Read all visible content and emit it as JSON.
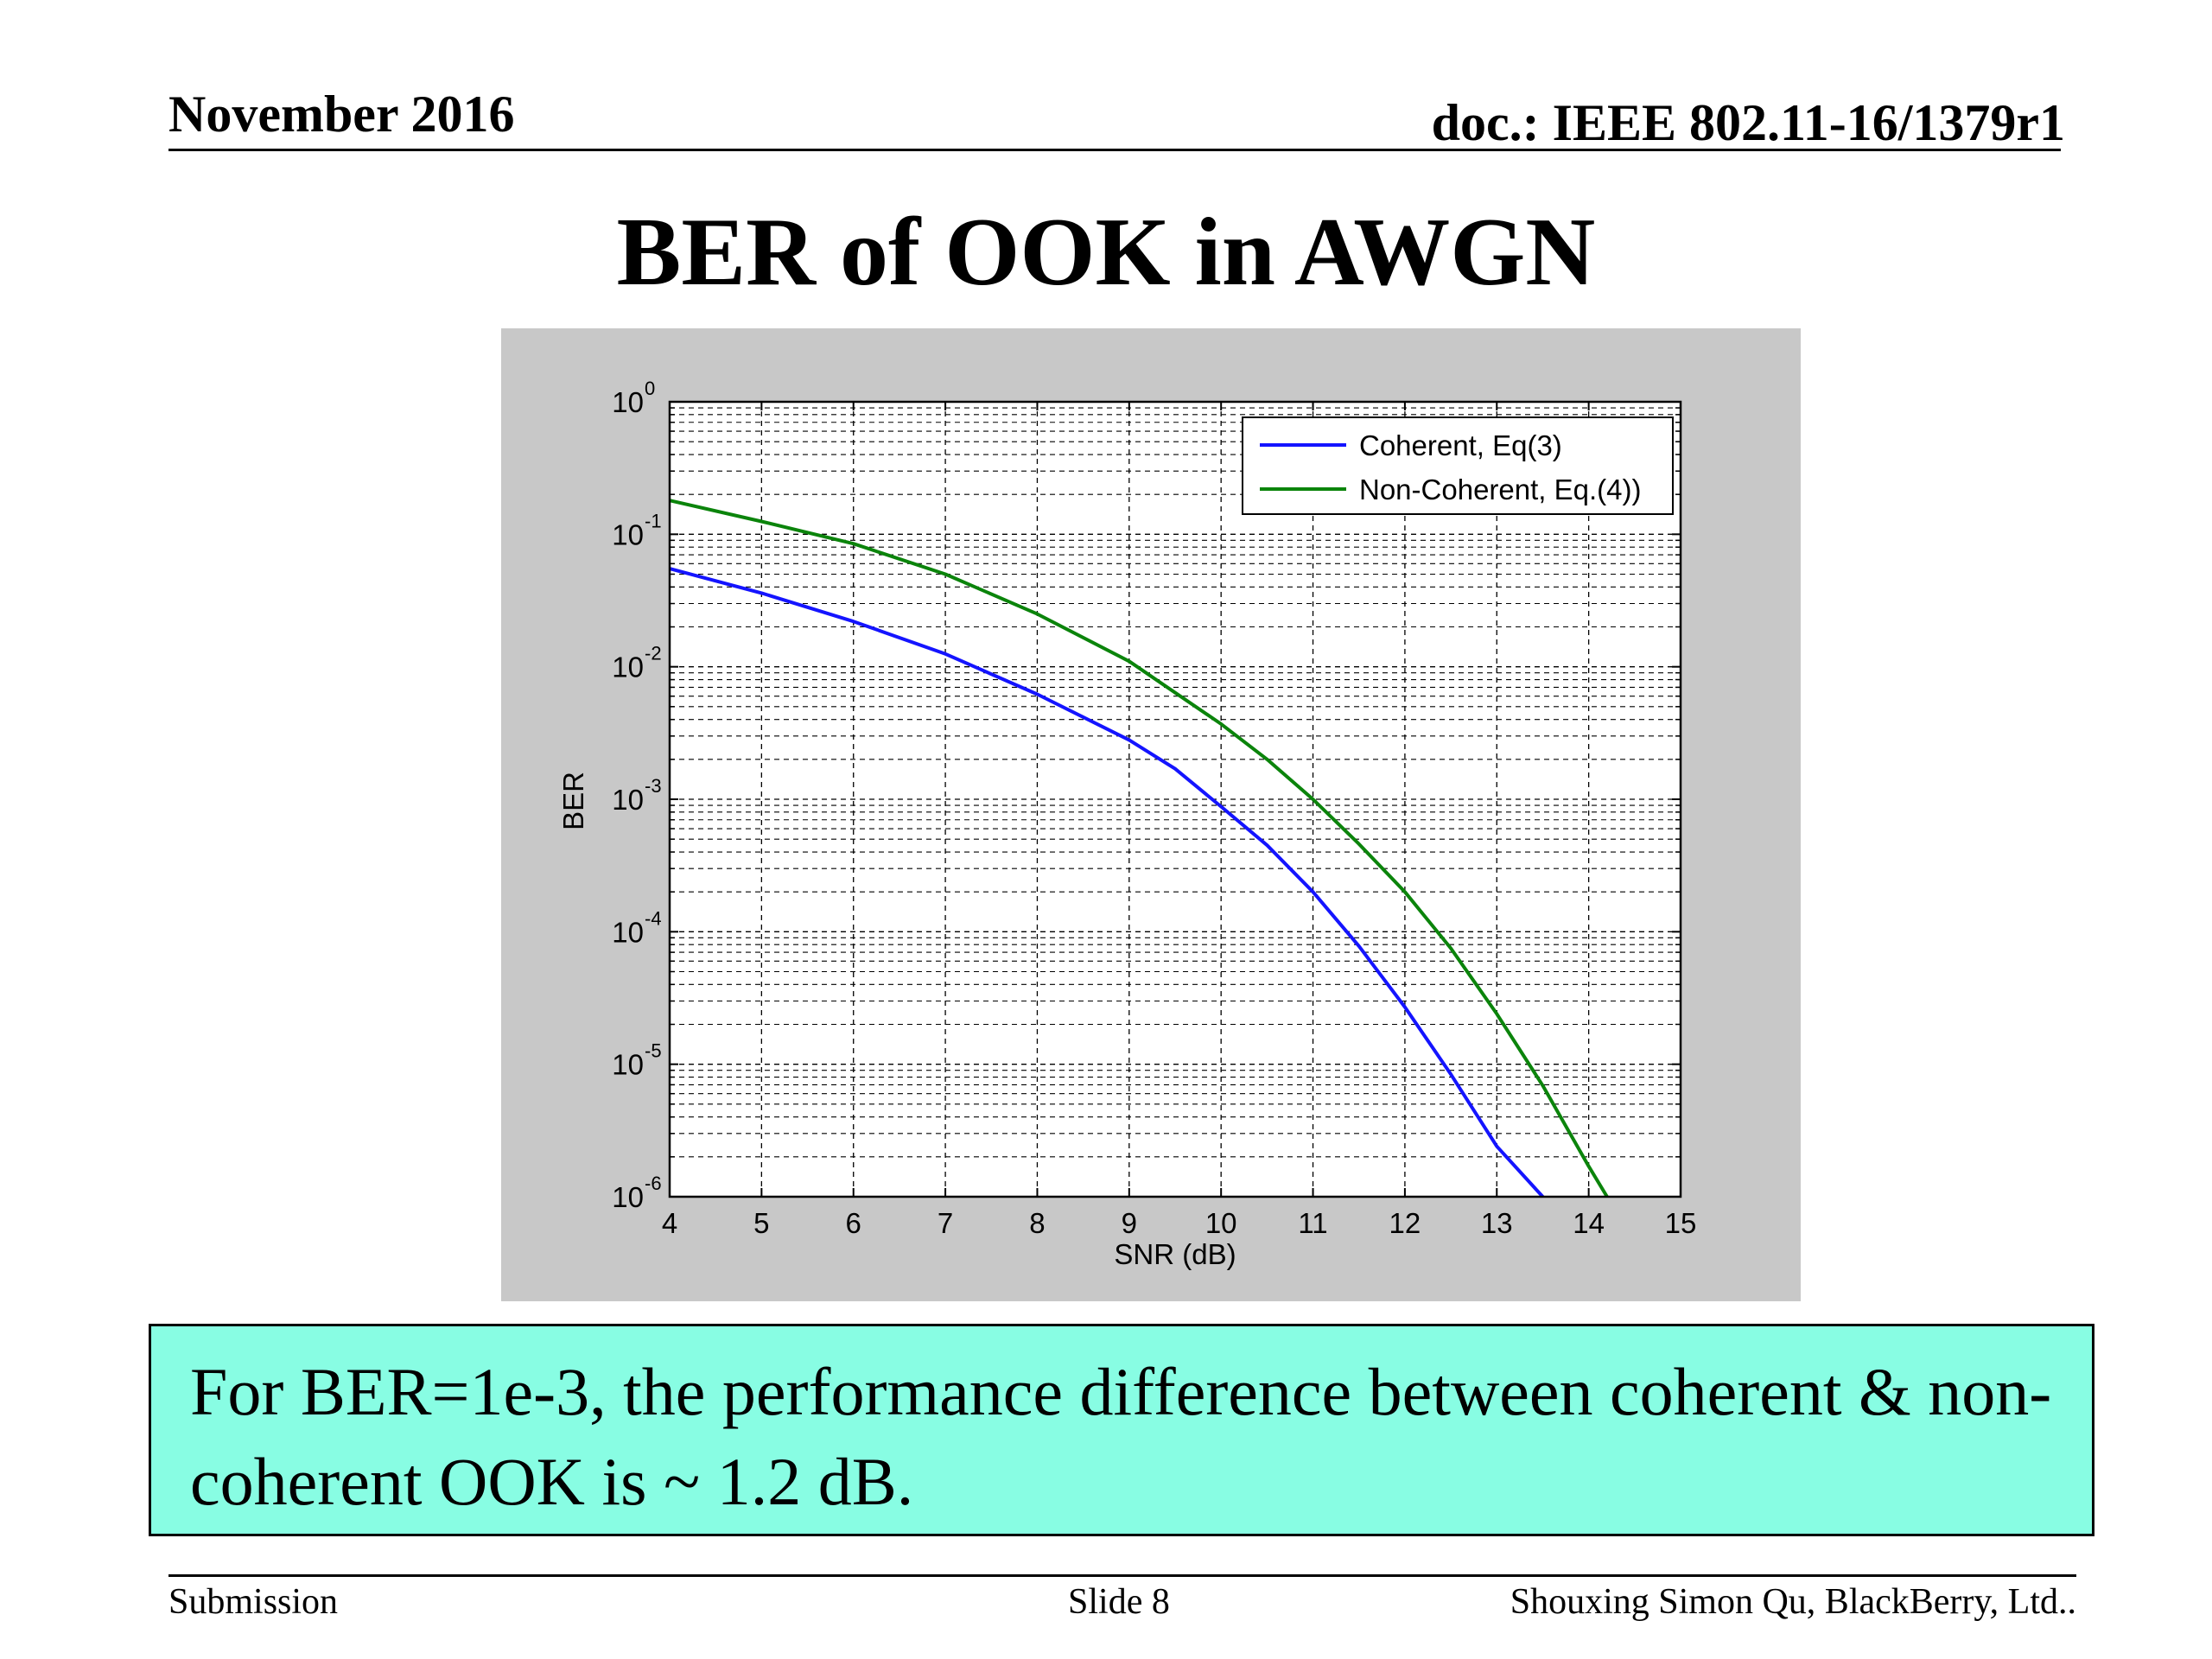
{
  "header": {
    "date": "November 2016",
    "doc": "doc.: IEEE 802.11-16/1379r1"
  },
  "slide": {
    "title": "BER of OOK in AWGN"
  },
  "note": {
    "text": "For  BER=1e-3, the performance difference between coherent & non-coherent OOK is  ~ 1.2 dB."
  },
  "footer": {
    "left": "Submission",
    "center": "Slide 8",
    "right": "Shouxing Simon Qu, BlackBerry, Ltd.."
  },
  "colors": {
    "panel_bg": "#c8c8c8",
    "note_bg": "#88fde3",
    "coherent": "#1414ff",
    "noncoherent": "#0b840b"
  },
  "chart_data": {
    "type": "line",
    "xlabel": "SNR (dB)",
    "ylabel": "BER",
    "xlim": [
      4,
      15
    ],
    "ylim": [
      1e-06,
      1
    ],
    "yscale": "log",
    "grid": true,
    "legend_position": "top-right",
    "xticks": [
      4,
      5,
      6,
      7,
      8,
      9,
      10,
      11,
      12,
      13,
      14,
      15
    ],
    "yticks": [
      {
        "base": "10",
        "exp": "0",
        "value": 1
      },
      {
        "base": "10",
        "exp": "-1",
        "value": 0.1
      },
      {
        "base": "10",
        "exp": "-2",
        "value": 0.01
      },
      {
        "base": "10",
        "exp": "-3",
        "value": 0.001
      },
      {
        "base": "10",
        "exp": "-4",
        "value": 0.0001
      },
      {
        "base": "10",
        "exp": "-5",
        "value": 1e-05
      },
      {
        "base": "10",
        "exp": "-6",
        "value": 1e-06
      }
    ],
    "series": [
      {
        "name": "Coherent, Eq(3)",
        "color": "#1414ff",
        "x": [
          4,
          5,
          6,
          7,
          8,
          9,
          9.5,
          10,
          10.5,
          11,
          11.5,
          12,
          12.5,
          13,
          13.5
        ],
        "y": [
          0.055,
          0.036,
          0.022,
          0.0125,
          0.0062,
          0.0028,
          0.0017,
          0.00088,
          0.00045,
          0.0002,
          7.8e-05,
          2.7e-05,
          8.4e-06,
          2.4e-06,
          1e-06
        ]
      },
      {
        "name": "Non-Coherent, Eq.(4))",
        "color": "#0b840b",
        "x": [
          4,
          5,
          6,
          7,
          8,
          9,
          10,
          10.5,
          11,
          11.5,
          12,
          12.5,
          13,
          13.5,
          14,
          14.2
        ],
        "y": [
          0.18,
          0.125,
          0.085,
          0.05,
          0.025,
          0.011,
          0.0037,
          0.002,
          0.001,
          0.00046,
          0.0002,
          7.5e-05,
          2.4e-05,
          6.9e-06,
          1.7e-06,
          1e-06
        ]
      }
    ]
  }
}
